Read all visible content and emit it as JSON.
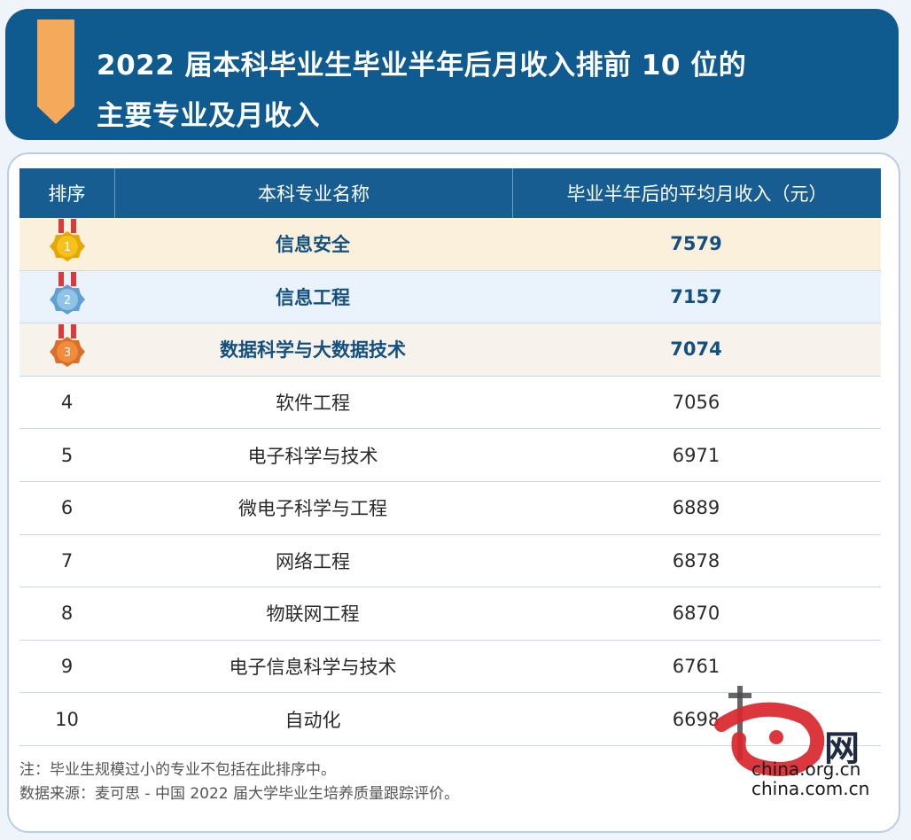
{
  "title": {
    "line1": "2022 届本科毕业生毕业半年后月收入排前 10 位的",
    "line2": "主要专业及月收入"
  },
  "table": {
    "headers": [
      "排序",
      "本科专业名称",
      "毕业半年后的平均月收入（元）"
    ]
  },
  "chart_data": {
    "type": "table",
    "columns": [
      "排序",
      "本科专业名称",
      "毕业半年后的平均月收入（元）"
    ],
    "rows": [
      {
        "rank": "1",
        "major": "信息安全",
        "income": "7579"
      },
      {
        "rank": "2",
        "major": "信息工程",
        "income": "7157"
      },
      {
        "rank": "3",
        "major": "数据科学与大数据技术",
        "income": "7074"
      },
      {
        "rank": "4",
        "major": "软件工程",
        "income": "7056"
      },
      {
        "rank": "5",
        "major": "电子科学与技术",
        "income": "6971"
      },
      {
        "rank": "6",
        "major": "微电子科学与工程",
        "income": "6889"
      },
      {
        "rank": "7",
        "major": "网络工程",
        "income": "6878"
      },
      {
        "rank": "8",
        "major": "物联网工程",
        "income": "6870"
      },
      {
        "rank": "9",
        "major": "电子信息科学与技术",
        "income": "6761"
      },
      {
        "rank": "10",
        "major": "自动化",
        "income": "6698"
      }
    ]
  },
  "notes": {
    "note": "注：毕业生规模过小的专业不包括在此排序中。",
    "source": "数据来源：麦可思 - 中国 2022 届大学毕业生培养质量跟踪评价。"
  },
  "watermark": {
    "brand_cn": "网",
    "url1": "china.org.cn",
    "url2": "china.com.cn"
  },
  "colors": {
    "banner": "#0f5a8f",
    "header": "#175d92",
    "ribbon": "#f5a95a",
    "gold": "#f4c21b",
    "silver": "#8fc3e8",
    "bronze": "#f08c3c",
    "watermark_red": "#d8262d"
  },
  "icons": {
    "ribbon": "bookmark-ribbon-icon",
    "medal_1": "gold-medal-icon",
    "medal_2": "silver-medal-icon",
    "medal_3": "bronze-medal-icon"
  }
}
